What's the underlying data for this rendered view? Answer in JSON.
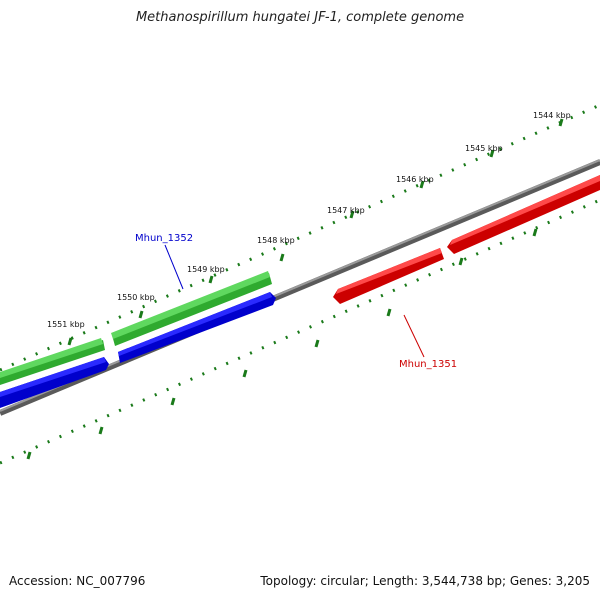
{
  "title": "Methanospirillum hungatei JF-1, complete genome",
  "footer": {
    "accession": "Accession: NC_007796",
    "summary": "Topology: circular; Length: 3,544,738 bp; Genes: 3,205"
  },
  "ticks": [
    {
      "label": "1544 kbp"
    },
    {
      "label": "1545 kbp"
    },
    {
      "label": "1546 kbp"
    },
    {
      "label": "1547 kbp"
    },
    {
      "label": "1548 kbp"
    },
    {
      "label": "1549 kbp"
    },
    {
      "label": "1550 kbp"
    },
    {
      "label": "1551 kbp"
    }
  ],
  "genes": [
    {
      "name": "Mhun_1352",
      "label_color": "#0000cc"
    },
    {
      "name": "Mhun_1351",
      "label_color": "#cc0000"
    }
  ],
  "colors": {
    "backbone": "#808080",
    "ticks": "#1a7a1a",
    "cds_forward": "#3cc83c",
    "orf_forward": "#0000e6",
    "orf_reverse": "#ee0000"
  }
}
